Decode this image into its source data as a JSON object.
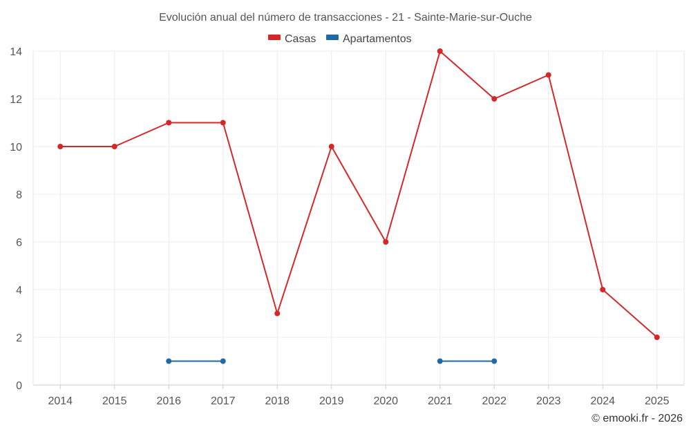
{
  "chart_data": {
    "type": "line",
    "title": "Evolución anual del número de transacciones - 21 - Sainte-Marie-sur-Ouche",
    "categories": [
      "2014",
      "2015",
      "2016",
      "2017",
      "2018",
      "2019",
      "2020",
      "2021",
      "2022",
      "2023",
      "2024",
      "2025"
    ],
    "series": [
      {
        "name": "Casas",
        "color": "#d62728",
        "values": [
          10,
          10,
          11,
          11,
          3,
          10,
          6,
          14,
          12,
          13,
          4,
          2
        ]
      },
      {
        "name": "Apartamentos",
        "color": "#1f6aa5",
        "values": [
          null,
          null,
          1,
          1,
          null,
          null,
          null,
          1,
          1,
          null,
          null,
          null
        ]
      }
    ],
    "ylim": [
      0,
      14
    ],
    "yticks": [
      "0",
      "2",
      "4",
      "6",
      "8",
      "10",
      "12",
      "14"
    ],
    "xlabel": "",
    "ylabel": "",
    "grid": true,
    "legend": "top-center"
  },
  "credit": "© emooki.fr - 2026"
}
